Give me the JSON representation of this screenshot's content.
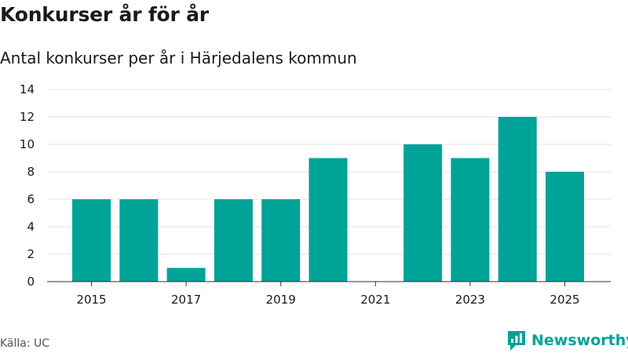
{
  "chart_data": {
    "type": "bar",
    "title": "Konkurser år för år",
    "subtitle": "Antal konkurser per år i Härjedalens kommun",
    "categories": [
      "2015",
      "2016",
      "2017",
      "2018",
      "2019",
      "2020",
      "2021",
      "2022",
      "2023",
      "2024",
      "2025"
    ],
    "values": [
      6,
      6,
      1,
      6,
      6,
      9,
      0,
      10,
      9,
      12,
      8
    ],
    "x_tick_labels": [
      "2015",
      "2017",
      "2019",
      "2021",
      "2023",
      "2025"
    ],
    "y_ticks": [
      0,
      2,
      4,
      6,
      8,
      10,
      12,
      14
    ],
    "ylim": [
      0,
      14
    ],
    "grid": true,
    "bar_color": "#00a398"
  },
  "source": "Källa: UC",
  "brand": {
    "name": "Newsworthy",
    "icon": "newsworthy-logo-icon",
    "color": "#00a398"
  },
  "colors": {
    "grid": "#e3e3e3",
    "axis": "#333333",
    "text": "#1a1a1a"
  }
}
